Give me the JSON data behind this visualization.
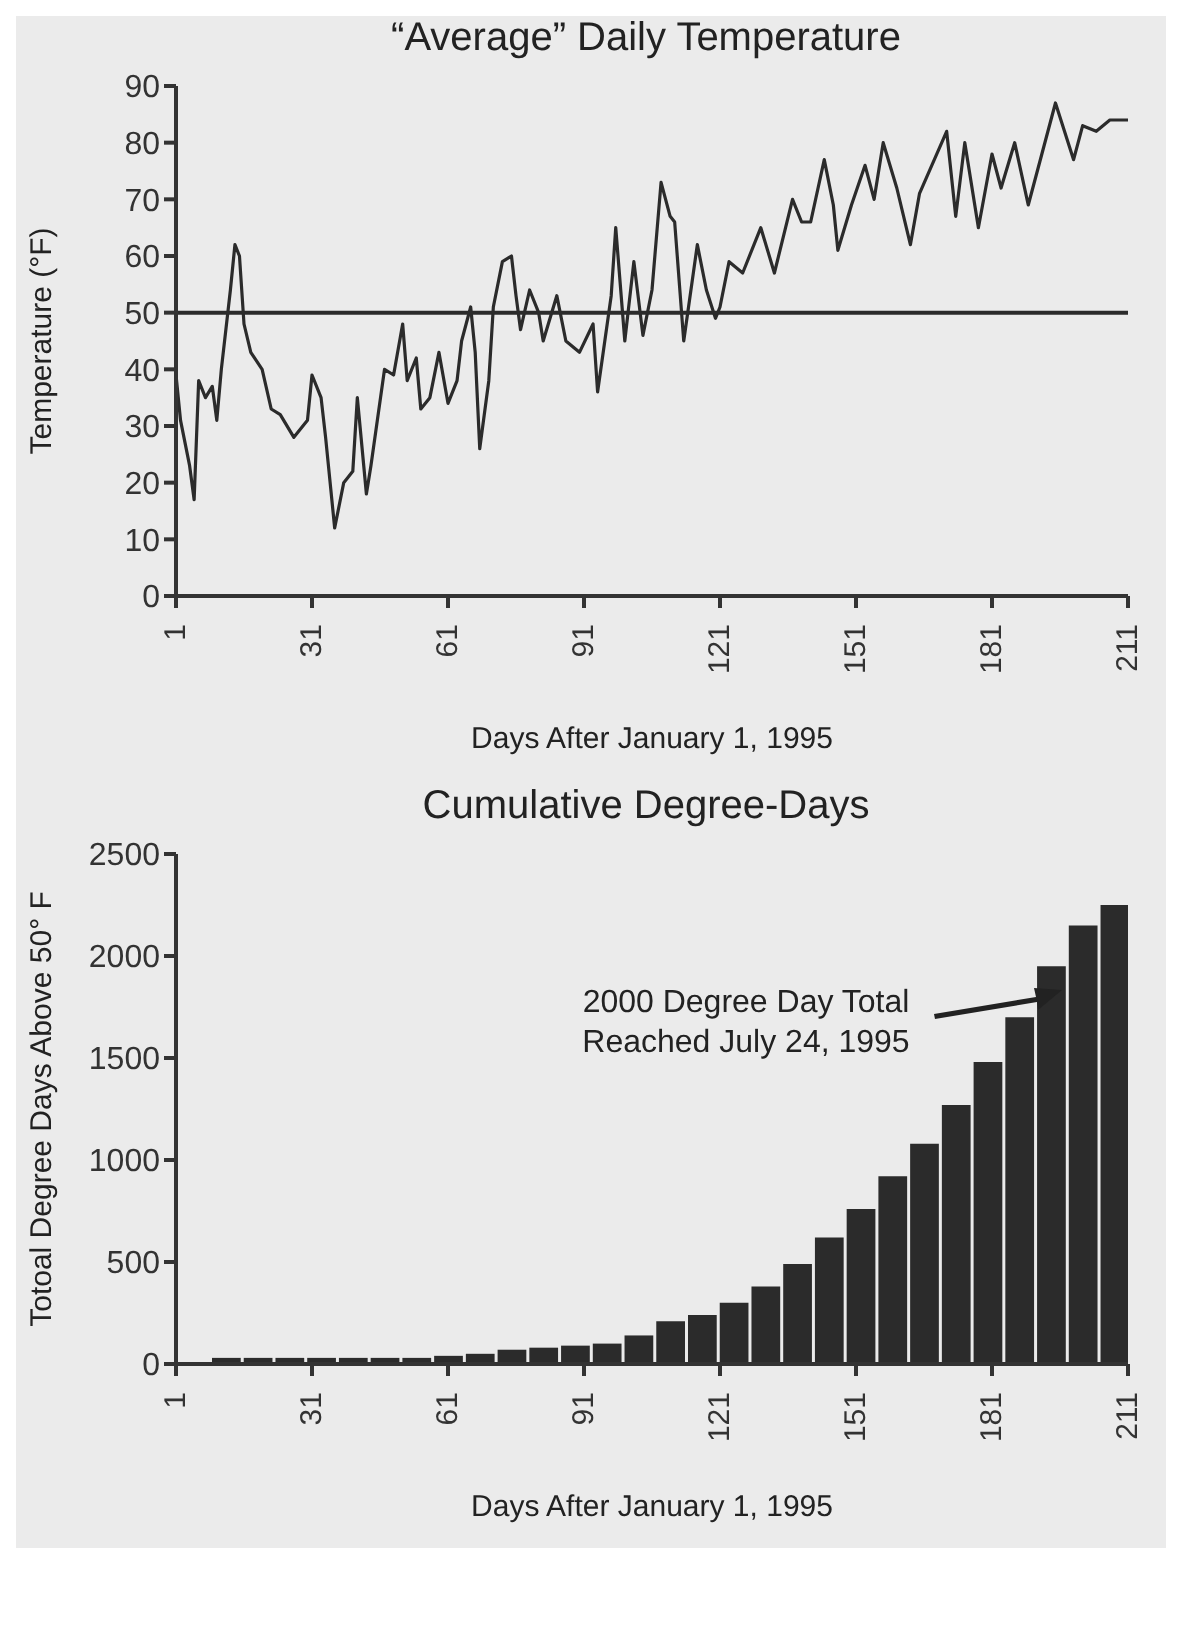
{
  "chart_data": [
    {
      "type": "line",
      "title": "“Average” Daily Temperature",
      "xlabel": "Days After January 1, 1995",
      "ylabel": "Temperature (°F)",
      "x": [
        1,
        2,
        4,
        5,
        6,
        7.5,
        9,
        10,
        11,
        13,
        14,
        15,
        16,
        17.5,
        20,
        22,
        24,
        27,
        30,
        31,
        33,
        34,
        36,
        38,
        40,
        41,
        43,
        44,
        47,
        49,
        51,
        52,
        54,
        55,
        57,
        59,
        61,
        63,
        64,
        66,
        67,
        68,
        70,
        71,
        73,
        75,
        76,
        77,
        79,
        81,
        82,
        85,
        87,
        90,
        93,
        94,
        97,
        98,
        100,
        102,
        104,
        106,
        108,
        110,
        111,
        113,
        116,
        118,
        120,
        121,
        123,
        126,
        130,
        133,
        137,
        139,
        141,
        144,
        146,
        147,
        150,
        153,
        155,
        157,
        160,
        163,
        165,
        171,
        173,
        175,
        178,
        181,
        183,
        186,
        189,
        192,
        195,
        199,
        201,
        204,
        207,
        211
      ],
      "series": [
        {
          "color": "#2b2b2b",
          "values": [
            39,
            31,
            23,
            17,
            38,
            35,
            37,
            31,
            40,
            54,
            62,
            60,
            48,
            43,
            40,
            33,
            32,
            28,
            31,
            39,
            35,
            28,
            12,
            20,
            22,
            35,
            18,
            23,
            40,
            39,
            48,
            38,
            42,
            33,
            35,
            43,
            34,
            38,
            45,
            51,
            43,
            26,
            38,
            51,
            59,
            60,
            53,
            47,
            54,
            50,
            45,
            53,
            45,
            43,
            48,
            36,
            53,
            65,
            45,
            59,
            46,
            54,
            73,
            67,
            66,
            45,
            62,
            54,
            49,
            51,
            59,
            57,
            65,
            57,
            70,
            66,
            66,
            77,
            69,
            61,
            69,
            76,
            70,
            80,
            72,
            62,
            71,
            82,
            67,
            80,
            65,
            78,
            72,
            80,
            69,
            78,
            87,
            77,
            83,
            82,
            84,
            84
          ]
        }
      ],
      "xlim": [
        1,
        211
      ],
      "xticks": [
        1,
        31,
        61,
        91,
        121,
        151,
        181,
        211
      ],
      "ylim": [
        0,
        90
      ],
      "yticks": [
        0,
        10,
        20,
        30,
        40,
        50,
        60,
        70,
        80,
        90
      ],
      "ref_lines": [
        {
          "axis": "y",
          "value": 50,
          "color": "#2b2b2b"
        }
      ]
    },
    {
      "type": "bar",
      "title": "Cumulative Degree-Days",
      "xlabel": "Days After January 1, 1995",
      "ylabel": "Totoal Degree Days Above 50° F",
      "x": [
        5,
        12,
        19,
        26,
        33,
        40,
        47,
        54,
        61,
        68,
        75,
        82,
        89,
        96,
        103,
        110,
        117,
        124,
        131,
        138,
        145,
        152,
        159,
        166,
        173,
        180,
        187,
        194,
        201,
        208
      ],
      "series": [
        {
          "color": "#2b2b2b",
          "values": [
            0,
            30,
            30,
            30,
            30,
            30,
            30,
            30,
            40,
            50,
            70,
            80,
            90,
            100,
            140,
            210,
            240,
            300,
            380,
            490,
            620,
            760,
            920,
            1080,
            1270,
            1480,
            1700,
            1950,
            2150,
            2250
          ]
        }
      ],
      "xlim": [
        1,
        211
      ],
      "xticks": [
        1,
        31,
        61,
        91,
        121,
        151,
        181,
        211
      ],
      "ylim": [
        0,
        2500
      ],
      "yticks": [
        0,
        500,
        1000,
        1500,
        2000,
        2500
      ],
      "annotations": [
        "2000 Degree Day Total\nReached July 24, 1995"
      ]
    }
  ]
}
